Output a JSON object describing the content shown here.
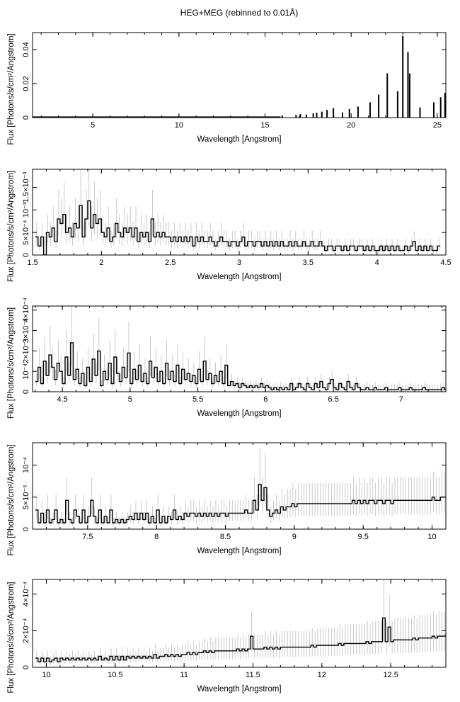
{
  "title": "HEG+MEG (rebinned to 0.01Å)",
  "chart_data": [
    {
      "type": "line",
      "xlabel": "Wavelength [Angstrom]",
      "ylabel": "Flux [Photons/s/cm²/Angstrom]",
      "xlim": [
        1.5,
        25.5
      ],
      "ylim": [
        0,
        0.05
      ],
      "xticks": [
        5,
        10,
        15,
        20,
        25
      ],
      "xtick_labels": [
        "5",
        "10",
        "15",
        "20",
        "25"
      ],
      "yticks": [
        0,
        0.02,
        0.04
      ],
      "ytick_labels": [
        "0",
        "0.02",
        "0.04"
      ],
      "spikes": [
        {
          "x": 16.0,
          "y": 0.0012
        },
        {
          "x": 16.8,
          "y": 0.0015
        },
        {
          "x": 17.05,
          "y": 0.002
        },
        {
          "x": 17.4,
          "y": 0.0018
        },
        {
          "x": 17.8,
          "y": 0.0025
        },
        {
          "x": 18.0,
          "y": 0.0028
        },
        {
          "x": 18.3,
          "y": 0.0035
        },
        {
          "x": 18.6,
          "y": 0.0045
        },
        {
          "x": 18.97,
          "y": 0.0055
        },
        {
          "x": 19.5,
          "y": 0.003
        },
        {
          "x": 19.9,
          "y": 0.005
        },
        {
          "x": 20.4,
          "y": 0.0065
        },
        {
          "x": 21.1,
          "y": 0.009
        },
        {
          "x": 21.6,
          "y": 0.0135
        },
        {
          "x": 22.1,
          "y": 0.026
        },
        {
          "x": 22.7,
          "y": 0.0155
        },
        {
          "x": 23.0,
          "y": 0.048
        },
        {
          "x": 23.3,
          "y": 0.0385
        },
        {
          "x": 23.4,
          "y": 0.026
        },
        {
          "x": 24.0,
          "y": 0.006
        },
        {
          "x": 24.8,
          "y": 0.009
        },
        {
          "x": 25.2,
          "y": 0.012
        },
        {
          "x": 25.45,
          "y": 0.0145
        }
      ],
      "continuum": {
        "x_start": 1.5,
        "x_end": 15.9,
        "step": 0.25,
        "level": 0.0006
      }
    },
    {
      "type": "line",
      "xlabel": "Wavelength [Angstrom]",
      "ylabel": "Flux [Photons/s/cm²/Angstrom]",
      "xlim": [
        1.5,
        4.5
      ],
      "ylim": [
        0,
        0.0019
      ],
      "xticks": [
        1.5,
        2,
        2.5,
        3,
        3.5,
        4,
        4.5
      ],
      "xtick_labels": [
        "1.5",
        "2",
        "2.5",
        "3",
        "3.5",
        "4",
        "4.5"
      ],
      "yticks": [
        0,
        0.0005,
        0.001,
        0.0015
      ],
      "ytick_labels": [
        "0",
        "5×10⁻⁴",
        "10⁻³",
        "1.5×10⁻³"
      ],
      "x_start": 1.52,
      "bin_width": 0.02,
      "values": [
        0.0004,
        0.0002,
        0.0004,
        0.0,
        0.0005,
        0.0004,
        0.0006,
        0.0003,
        0.0008,
        0.0007,
        0.0009,
        0.0005,
        0.0006,
        0.0004,
        0.0007,
        0.0006,
        0.0011,
        0.0004,
        0.0008,
        0.0012,
        0.0006,
        0.0009,
        0.0007,
        0.0008,
        0.0005,
        0.0004,
        0.0006,
        0.0003,
        0.0004,
        0.0007,
        0.0005,
        0.0004,
        0.0006,
        0.0005,
        0.0006,
        0.0004,
        0.0006,
        0.0003,
        0.0005,
        0.0004,
        0.0005,
        0.0003,
        0.0008,
        0.0004,
        0.0005,
        0.0004,
        0.0005,
        0.0004,
        0.0004,
        0.0003,
        0.0004,
        0.0003,
        0.0004,
        0.0003,
        0.0004,
        0.0003,
        0.0004,
        0.0002,
        0.0004,
        0.0003,
        0.0004,
        0.0003,
        0.0003,
        0.0004,
        0.0003,
        0.0002,
        0.0003,
        0.0004,
        0.0003,
        0.0003,
        0.0002,
        0.0003,
        0.0003,
        0.0002,
        0.0003,
        0.0004,
        0.0002,
        0.0003,
        0.0003,
        0.0002,
        0.0003,
        0.0003,
        0.0002,
        0.0003,
        0.0002,
        0.0003,
        0.0002,
        0.0003,
        0.0002,
        0.0003,
        0.0002,
        0.0002,
        0.0003,
        0.0002,
        0.0003,
        0.0002,
        0.0002,
        0.0003,
        0.0002,
        0.0002,
        0.0003,
        0.0002,
        0.0002,
        0.0003,
        0.0002,
        0.0001,
        0.0002,
        0.0002,
        0.0001,
        0.0002,
        0.0002,
        0.0001,
        0.0002,
        0.0001,
        0.0002,
        0.0002,
        0.0001,
        0.0002,
        0.0002,
        0.0001,
        0.0002,
        0.0001,
        0.0002,
        0.0001,
        0.0001,
        0.0002,
        0.0001,
        0.0002,
        0.0001,
        0.0002,
        0.0001,
        0.0002,
        0.0001,
        0.0001,
        0.0002,
        0.0001,
        0.0002,
        0.0003,
        0.0001,
        0.0002,
        0.0001,
        0.0002,
        0.0001,
        0.0002,
        0.0001,
        0.0001,
        0.0002
      ]
    },
    {
      "type": "line",
      "xlabel": "Wavelength [Angstrom]",
      "ylabel": "Flux [Photons/s/cm²/Angstrom]",
      "xlim": [
        4.28,
        7.33
      ],
      "ylim": [
        0,
        0.00042
      ],
      "xticks": [
        4.5,
        5,
        5.5,
        6,
        6.5,
        7
      ],
      "xtick_labels": [
        "4.5",
        "5",
        "5.5",
        "6",
        "6.5",
        "7"
      ],
      "yticks": [
        0,
        0.0001,
        0.0002,
        0.0003,
        0.0004
      ],
      "ytick_labels": [
        "0",
        "10⁻⁴",
        "2×10⁻⁴",
        "3×10⁻⁴",
        "4×10⁻⁴"
      ],
      "x_start": 4.3,
      "bin_width": 0.02,
      "values": [
        5e-05,
        0.00012,
        4e-05,
        0.00015,
        8e-05,
        0.00018,
        0.00012,
        6e-05,
        0.00014,
        0.0001,
        4e-05,
        0.00017,
        8e-05,
        0.00024,
        6e-05,
        0.00011,
        4e-05,
        9e-05,
        3e-05,
        0.00012,
        5e-05,
        0.00016,
        8e-05,
        0.0002,
        3e-05,
        0.0001,
        6e-05,
        0.00014,
        4e-05,
        0.00017,
        9e-05,
        5e-05,
        0.00012,
        7e-05,
        0.00019,
        4e-05,
        0.00011,
        6e-05,
        0.00013,
        5e-05,
        9e-05,
        4e-05,
        0.00015,
        7e-05,
        0.00012,
        5e-05,
        0.0001,
        4e-05,
        0.00014,
        6e-05,
        0.0001,
        5e-05,
        0.00013,
        4e-05,
        0.00011,
        6e-05,
        9e-05,
        5e-05,
        8e-05,
        4e-05,
        0.00011,
        5e-05,
        0.00015,
        6e-05,
        9e-05,
        4e-05,
        8e-05,
        5e-05,
        0.0001,
        4e-05,
        0.00013,
        3e-05,
        5e-05,
        3e-05,
        4e-05,
        2e-05,
        4e-05,
        3e-05,
        2e-05,
        3e-05,
        2e-05,
        3e-05,
        2e-05,
        4e-05,
        2e-05,
        3e-05,
        2e-05,
        1e-05,
        2e-05,
        1e-05,
        2e-05,
        1e-05,
        2e-05,
        1e-05,
        4e-05,
        1e-05,
        2e-05,
        4e-05,
        2e-05,
        1e-05,
        4e-05,
        2e-05,
        1e-05,
        4e-05,
        2e-05,
        5e-05,
        2e-05,
        1e-05,
        4e-05,
        6e-05,
        2e-05,
        1e-05,
        4e-05,
        2e-05,
        1e-05,
        5e-05,
        2e-05,
        1e-05,
        4e-05,
        2e-05,
        1e-05,
        1e-05,
        2e-05,
        1e-05,
        1e-05,
        2e-05,
        1e-05,
        1e-05,
        1e-05,
        2e-05,
        1e-05,
        1e-05,
        1e-05,
        1e-05,
        2e-05,
        1e-05,
        1e-05,
        1e-05,
        2e-05,
        1e-05,
        1e-05,
        1e-05,
        1e-05,
        2e-05,
        1e-05,
        1e-05,
        1e-05,
        1e-05,
        1e-05,
        1e-05,
        2e-05,
        1e-05
      ]
    },
    {
      "type": "line",
      "xlabel": "Wavelength [Angstrom]",
      "ylabel": "Flux [Photons/s/cm²/Angstrom]",
      "xlim": [
        7.1,
        10.1
      ],
      "ylim": [
        0,
        0.000135
      ],
      "xticks": [
        7.5,
        8,
        8.5,
        9,
        9.5,
        10
      ],
      "xtick_labels": [
        "7.5",
        "8",
        "8.5",
        "9",
        "9.5",
        "10"
      ],
      "yticks": [
        0,
        5e-05,
        0.0001
      ],
      "ytick_labels": [
        "0",
        "5×10⁻⁵",
        "10⁻⁴"
      ],
      "x_start": 7.12,
      "bin_width": 0.02,
      "values": [
        3e-05,
        1e-05,
        2.5e-05,
        1e-05,
        3e-05,
        1e-05,
        1.5e-05,
        3e-05,
        1e-05,
        1.5e-05,
        1e-05,
        4.5e-05,
        1.5e-05,
        1e-05,
        3e-05,
        2e-05,
        1e-05,
        3e-05,
        1e-05,
        2e-05,
        4.5e-05,
        2e-05,
        1e-05,
        3e-05,
        1e-05,
        2e-05,
        1e-05,
        3e-05,
        1e-05,
        1.5e-05,
        1e-05,
        1.5e-05,
        1e-05,
        1.5e-05,
        2e-05,
        1.5e-05,
        2.5e-05,
        1.5e-05,
        2.5e-05,
        1.5e-05,
        2.5e-05,
        1e-05,
        2e-05,
        1e-05,
        3e-05,
        1e-05,
        2e-05,
        1e-05,
        2e-05,
        1.5e-05,
        3e-05,
        1.5e-05,
        2e-05,
        1.5e-05,
        2.5e-05,
        2e-05,
        2.5e-05,
        2.5e-05,
        2e-05,
        2.5e-05,
        2e-05,
        2.5e-05,
        2e-05,
        2.5e-05,
        2e-05,
        2.5e-05,
        2e-05,
        2.5e-05,
        2.5e-05,
        2e-05,
        2.5e-05,
        2.5e-05,
        2.5e-05,
        2.5e-05,
        2.5e-05,
        2.5e-05,
        3e-05,
        2.5e-05,
        2.5e-05,
        4.5e-05,
        3e-05,
        7e-05,
        4.5e-05,
        6.5e-05,
        3e-05,
        2e-05,
        2.5e-05,
        3e-05,
        2.5e-05,
        3.5e-05,
        3e-05,
        3.5e-05,
        3.5e-05,
        4e-05,
        3.5e-05,
        4e-05,
        4e-05,
        4e-05,
        4e-05,
        4e-05,
        4e-05,
        4e-05,
        4e-05,
        4e-05,
        4e-05,
        4e-05,
        4e-05,
        4e-05,
        4e-05,
        4e-05,
        4e-05,
        4e-05,
        4e-05,
        4e-05,
        4e-05,
        4.5e-05,
        4e-05,
        4.5e-05,
        4e-05,
        4.5e-05,
        4e-05,
        4.5e-05,
        4.5e-05,
        4e-05,
        4.5e-05,
        4.5e-05,
        4e-05,
        4.5e-05,
        4.5e-05,
        4e-05,
        4.5e-05,
        4.5e-05,
        4.5e-05,
        4.5e-05,
        4.5e-05,
        4.5e-05,
        4.5e-05,
        4.5e-05,
        4.5e-05,
        4.5e-05,
        4.5e-05,
        4.5e-05,
        4.5e-05,
        4.5e-05,
        5e-05,
        4.5e-05,
        4.5e-05,
        5e-05,
        5e-05
      ]
    },
    {
      "type": "line",
      "xlabel": "Wavelength [Angstrom]",
      "ylabel": "Flux [Photons/s/cm²/Angstrom]",
      "xlim": [
        9.9,
        12.9
      ],
      "ylim": [
        0,
        0.00048
      ],
      "xticks": [
        10,
        10.5,
        11,
        11.5,
        12,
        12.5
      ],
      "xtick_labels": [
        "10",
        "10.5",
        "11",
        "11.5",
        "12",
        "12.5"
      ],
      "yticks": [
        0,
        0.0002,
        0.0004
      ],
      "ytick_labels": [
        "0",
        "2×10⁻⁴",
        "4×10⁻⁴"
      ],
      "x_start": 9.92,
      "bin_width": 0.02,
      "values": [
        5e-05,
        3e-05,
        5e-05,
        3e-05,
        5e-05,
        3e-05,
        4e-05,
        5e-05,
        3e-05,
        5e-05,
        4e-05,
        5e-05,
        4e-05,
        5e-05,
        4e-05,
        5e-05,
        4e-05,
        5e-05,
        4e-05,
        5e-05,
        4e-05,
        5e-05,
        4e-05,
        6e-05,
        4e-05,
        5e-05,
        4e-05,
        6e-05,
        4e-05,
        6e-05,
        4e-05,
        6e-05,
        4e-05,
        6e-05,
        5e-05,
        6e-05,
        5e-05,
        6e-05,
        5e-05,
        6e-05,
        5e-05,
        6e-05,
        5e-05,
        7e-05,
        5e-05,
        6e-05,
        6e-05,
        7e-05,
        6e-05,
        7e-05,
        6e-05,
        7e-05,
        6e-05,
        7e-05,
        7e-05,
        8e-05,
        7e-05,
        8e-05,
        7e-05,
        8e-05,
        8e-05,
        9e-05,
        8e-05,
        9e-05,
        8e-05,
        9e-05,
        9e-05,
        9e-05,
        9e-05,
        9e-05,
        9e-05,
        9e-05,
        9e-05,
        0.0001,
        9e-05,
        0.0001,
        9e-05,
        0.0001,
        0.00017,
        0.0001,
        0.0001,
        0.0001,
        0.0001,
        0.00011,
        0.0001,
        0.00011,
        0.0001,
        0.00011,
        0.0001,
        0.00011,
        0.00011,
        0.00011,
        0.00011,
        0.00011,
        0.00011,
        0.00011,
        0.00011,
        0.00011,
        0.00011,
        0.00011,
        0.00012,
        0.00011,
        0.00012,
        0.00012,
        0.00012,
        0.00012,
        0.00012,
        0.00012,
        0.00012,
        0.00012,
        0.00013,
        0.00012,
        0.00013,
        0.00013,
        0.00013,
        0.00013,
        0.00013,
        0.00013,
        0.00013,
        0.00013,
        0.00014,
        0.00013,
        0.00014,
        0.00014,
        0.00014,
        0.00014,
        0.00027,
        0.00014,
        0.00022,
        0.00014,
        0.00015,
        0.00015,
        0.00015,
        0.00015,
        0.00015,
        0.00015,
        0.00015,
        0.00016,
        0.00015,
        0.00016,
        0.00016,
        0.00016,
        0.00016,
        0.00016,
        0.00017,
        0.00016,
        0.00017,
        0.00017,
        0.00017,
        0.00018
      ]
    }
  ]
}
